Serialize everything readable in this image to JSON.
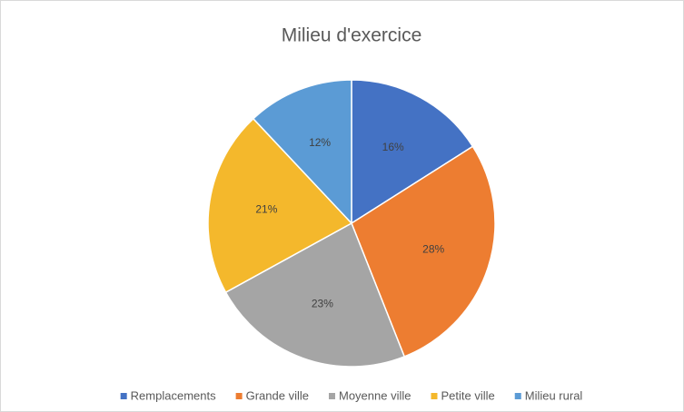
{
  "chart_data": {
    "type": "pie",
    "title": "Milieu d'exercice",
    "categories": [
      "Remplacements",
      "Grande ville",
      "Moyenne ville",
      "Petite ville",
      "Milieu rural"
    ],
    "values": [
      16,
      28,
      23,
      21,
      12
    ],
    "value_labels": [
      "16%",
      "28%",
      "23%",
      "21%",
      "12%"
    ],
    "colors": [
      "#4472c4",
      "#ed7d31",
      "#a5a5a5",
      "#f4b82c",
      "#5b9bd5"
    ],
    "legend": "bottom"
  }
}
